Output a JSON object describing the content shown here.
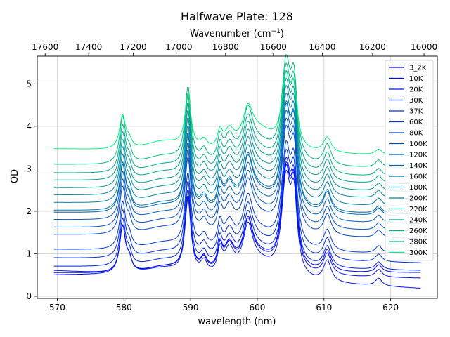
{
  "chart_data": {
    "type": "line",
    "title": "Halfwave Plate: 128",
    "xlabel": "wavelength (nm)",
    "ylabel": "OD",
    "top_xlabel": "Wavenumber (cm",
    "top_xlabel_sup": "−1",
    "top_xlabel_end": ")",
    "xlim": [
      567,
      627
    ],
    "ylim": [
      -0.05,
      5.65
    ],
    "xticks": [
      570,
      580,
      590,
      600,
      610,
      620
    ],
    "yticks": [
      0,
      1,
      2,
      3,
      4,
      5
    ],
    "top_ticks": [
      17600,
      17400,
      17200,
      17000,
      16800,
      16600,
      16400,
      16200,
      16000
    ],
    "grid": true,
    "legend_position": "upper-right",
    "x_range": [
      569.5,
      624.5
    ],
    "series": [
      {
        "name": "3_2K",
        "offset": 0.5,
        "color": "#0000ff",
        "bg_end": 0.55,
        "peak_scale": 1.0
      },
      {
        "name": "10K",
        "offset": 0.55,
        "color": "#000cf8",
        "bg_end": 0.42,
        "peak_scale": 1.0
      },
      {
        "name": "20K",
        "offset": 0.6,
        "color": "#0017f0",
        "bg_end": 0.18,
        "peak_scale": 1.0
      },
      {
        "name": "30K",
        "offset": 0.7,
        "color": "#0023e8",
        "bg_end": 0.6,
        "peak_scale": 1.0
      },
      {
        "name": "37K",
        "offset": 0.9,
        "color": "#002ee0",
        "bg_end": 0.78,
        "peak_scale": 1.0
      },
      {
        "name": "60K",
        "offset": 1.1,
        "color": "#003ad8",
        "bg_end": 0.98,
        "peak_scale": 1.0
      },
      {
        "name": "80K",
        "offset": 1.45,
        "color": "#0046d0",
        "bg_end": 1.35,
        "peak_scale": 1.0
      },
      {
        "name": "100K",
        "offset": 1.62,
        "color": "#0051c8",
        "bg_end": 1.52,
        "peak_scale": 1.0
      },
      {
        "name": "120K",
        "offset": 1.8,
        "color": "#005dc0",
        "bg_end": 1.7,
        "peak_scale": 1.0
      },
      {
        "name": "140K",
        "offset": 1.97,
        "color": "#0068b8",
        "bg_end": 1.87,
        "peak_scale": 1.0
      },
      {
        "name": "160K",
        "offset": 2.02,
        "color": "#0074b0",
        "bg_end": 1.92,
        "peak_scale": 1.0
      },
      {
        "name": "180K",
        "offset": 2.2,
        "color": "#0080a8",
        "bg_end": 2.1,
        "peak_scale": 1.0
      },
      {
        "name": "200K",
        "offset": 2.38,
        "color": "#008ba0",
        "bg_end": 2.28,
        "peak_scale": 1.0
      },
      {
        "name": "220K",
        "offset": 2.55,
        "color": "#009798",
        "bg_end": 2.45,
        "peak_scale": 1.0
      },
      {
        "name": "240K",
        "offset": 2.73,
        "color": "#00a290",
        "bg_end": 2.63,
        "peak_scale": 1.0
      },
      {
        "name": "260K",
        "offset": 2.9,
        "color": "#00ae88",
        "bg_end": 2.8,
        "peak_scale": 1.0
      },
      {
        "name": "280K",
        "offset": 3.1,
        "color": "#00ba80",
        "bg_end": 3.0,
        "peak_scale": 1.0
      },
      {
        "name": "300K",
        "offset": 3.47,
        "color": "#00f47a",
        "bg_end": 3.3,
        "peak_scale": 0.72
      }
    ],
    "peaks": [
      {
        "center": 579.8,
        "width": 0.55,
        "height": 1.1
      },
      {
        "center": 580.8,
        "width": 0.45,
        "height": 0.25
      },
      {
        "center": 589.6,
        "width": 0.55,
        "height": 1.75
      },
      {
        "center": 592.0,
        "width": 0.6,
        "height": 0.3
      },
      {
        "center": 594.4,
        "width": 0.45,
        "height": 0.55
      },
      {
        "center": 595.8,
        "width": 0.9,
        "height": 0.6
      },
      {
        "center": 598.6,
        "width": 0.85,
        "height": 0.95
      },
      {
        "center": 604.3,
        "width": 0.8,
        "height": 2.2
      },
      {
        "center": 605.5,
        "width": 0.6,
        "height": 1.7
      },
      {
        "center": 610.5,
        "width": 0.7,
        "height": 0.5
      },
      {
        "center": 618.2,
        "width": 0.6,
        "height": 0.18
      }
    ],
    "baseline_bumps": [
      {
        "center": 586,
        "width": 3.5,
        "height": 0.15
      },
      {
        "center": 600,
        "width": 3.0,
        "height": 0.35
      }
    ]
  }
}
